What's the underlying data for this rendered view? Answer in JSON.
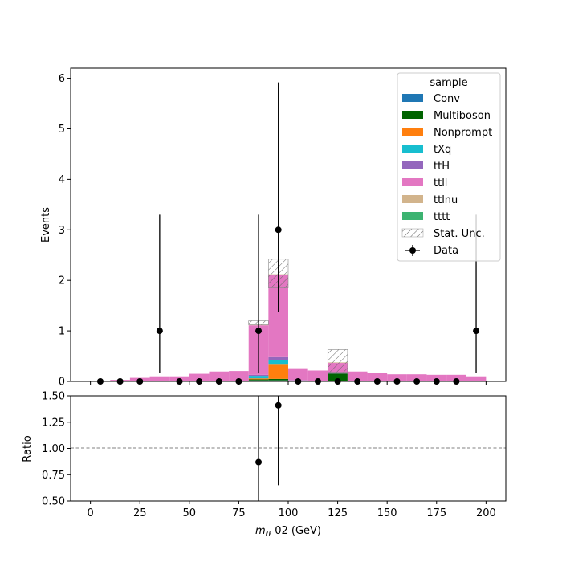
{
  "chart_data": [
    {
      "type": "bar",
      "subtype": "stacked-histogram",
      "x_bin_edges": [
        0,
        10,
        20,
        30,
        40,
        50,
        60,
        70,
        80,
        90,
        100,
        110,
        120,
        130,
        140,
        150,
        160,
        170,
        180,
        190,
        200
      ],
      "xlim": [
        -10,
        210
      ],
      "ylim": [
        0,
        6.2
      ],
      "ylabel": "Events",
      "y_ticks": [
        "0",
        "1",
        "2",
        "3",
        "4",
        "5",
        "6"
      ],
      "legend_title": "sample",
      "legend_position": "top-right",
      "series": [
        {
          "name": "Conv",
          "color": "#1f77b4",
          "values": [
            0,
            0,
            0,
            0,
            0,
            0,
            0.005,
            0.005,
            0.02,
            0.02,
            0.01,
            0.005,
            0.005,
            0.005,
            0,
            0,
            0,
            0,
            0,
            0
          ]
        },
        {
          "name": "Multiboson",
          "color": "#006400",
          "values": [
            0,
            0,
            0,
            0,
            0,
            0,
            0,
            0,
            0.02,
            0.03,
            0,
            0,
            0.15,
            0,
            0,
            0,
            0,
            0,
            0,
            0
          ]
        },
        {
          "name": "Nonprompt",
          "color": "#ff7f0e",
          "values": [
            0,
            0,
            0,
            0,
            0,
            0,
            0,
            0,
            0.02,
            0.28,
            0,
            0,
            0,
            0,
            0,
            0,
            0,
            0,
            0,
            0
          ]
        },
        {
          "name": "tXq",
          "color": "#17becf",
          "values": [
            0,
            0,
            0,
            0,
            0,
            0,
            0,
            0,
            0.05,
            0.09,
            0.01,
            0,
            0,
            0,
            0,
            0,
            0,
            0,
            0,
            0
          ]
        },
        {
          "name": "ttH",
          "color": "#9467bd",
          "values": [
            0,
            0,
            0,
            0,
            0,
            0,
            0,
            0,
            0.02,
            0.06,
            0,
            0,
            0.01,
            0,
            0,
            0,
            0,
            0,
            0,
            0
          ]
        },
        {
          "name": "ttll",
          "color": "#e377c2",
          "values": [
            0,
            0.03,
            0.07,
            0.1,
            0.1,
            0.15,
            0.19,
            0.2,
            0.98,
            1.63,
            0.24,
            0.21,
            0.2,
            0.19,
            0.16,
            0.14,
            0.14,
            0.13,
            0.13,
            0.1
          ]
        },
        {
          "name": "ttlnu",
          "color": "#d2b48c",
          "values": [
            0,
            0,
            0,
            0,
            0,
            0,
            0,
            0,
            0.01,
            0.01,
            0,
            0,
            0.01,
            0,
            0,
            0,
            0,
            0,
            0,
            0
          ]
        },
        {
          "name": "tttt",
          "color": "#3cb371",
          "values": [
            0,
            0,
            0,
            0,
            0,
            0,
            0,
            0,
            0,
            0,
            0,
            0,
            0,
            0,
            0,
            0,
            0,
            0,
            0,
            0
          ]
        }
      ],
      "stat_unc": {
        "name": "Stat. Unc.",
        "bins": [
          {
            "bin": 8,
            "low": 1.12,
            "high": 1.2
          },
          {
            "bin": 9,
            "low": 1.85,
            "high": 2.42
          },
          {
            "bin": 12,
            "low": 0.18,
            "high": 0.63
          }
        ]
      },
      "data": {
        "name": "Data",
        "x": [
          5,
          15,
          25,
          35,
          45,
          55,
          65,
          75,
          85,
          95,
          105,
          115,
          125,
          135,
          145,
          155,
          165,
          175,
          185,
          195
        ],
        "y": [
          0,
          0,
          0,
          1,
          0,
          0,
          0,
          0,
          1,
          3,
          0,
          0,
          0,
          0,
          0,
          0,
          0,
          0,
          0,
          1
        ],
        "err_low": [
          0,
          0,
          0,
          0.83,
          0,
          0,
          0,
          0,
          0.83,
          1.63,
          0,
          0,
          0,
          0,
          0,
          0,
          0,
          0,
          0,
          0.83
        ],
        "err_high": [
          0,
          0,
          0,
          2.3,
          0,
          0,
          0,
          0,
          2.3,
          2.92,
          0,
          0,
          0,
          0,
          0,
          0,
          0,
          0,
          0,
          2.3
        ]
      }
    },
    {
      "type": "scatter",
      "subtype": "ratio",
      "xlim": [
        -10,
        210
      ],
      "ylim": [
        0.5,
        1.5
      ],
      "ylabel": "Ratio",
      "xlabel_main": "m",
      "xlabel_sub": "ℓℓ",
      "xlabel_rest": " 02 (GeV)",
      "x_ticks": [
        "0",
        "25",
        "50",
        "75",
        "100",
        "125",
        "150",
        "175",
        "200"
      ],
      "y_ticks": [
        "0.50",
        "0.75",
        "1.00",
        "1.25",
        "1.50"
      ],
      "reference_line": 1.0,
      "points": [
        {
          "x": 85,
          "y": 0.87,
          "err_low": 0.72,
          "err_high": 2.0
        },
        {
          "x": 95,
          "y": 1.41,
          "err_low": 0.76,
          "err_high": 1.4
        }
      ]
    }
  ]
}
